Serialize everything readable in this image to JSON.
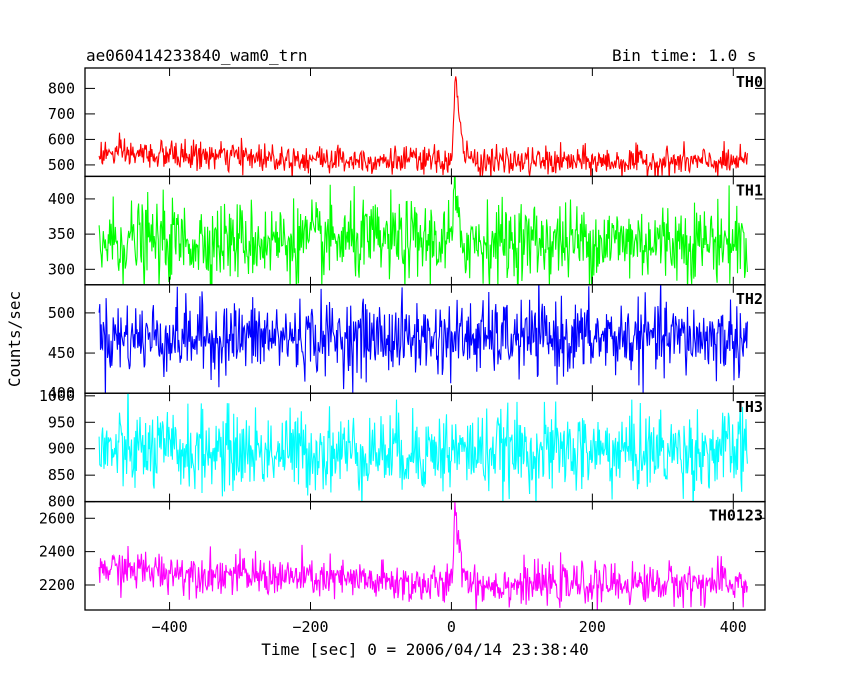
{
  "header": {
    "title": "ae060414233840_wam0_trn",
    "bin_time": "Bin time: 1.0 s"
  },
  "chart_data": {
    "type": "line",
    "xlabel": "Time [sec] 0 = 2006/04/14 23:38:40",
    "ylabel": "Counts/sec",
    "xlim": [
      -520,
      445
    ],
    "x_range": [
      -500,
      420
    ],
    "x_ticks": [
      -400,
      -200,
      0,
      200,
      400
    ],
    "panels": [
      {
        "name": "TH0",
        "color": "#ff0000",
        "ylim": [
          455,
          880
        ],
        "yticks": [
          500,
          600,
          700,
          800
        ],
        "baseline": [
          [
            -500,
            545
          ],
          [
            -200,
            525
          ],
          [
            -20,
            515
          ],
          [
            420,
            510
          ]
        ],
        "noise": 28,
        "burst": {
          "start": 2,
          "peak_time": 6,
          "peak": 875,
          "decay": 6
        }
      },
      {
        "name": "TH1",
        "color": "#00ff00",
        "ylim": [
          278,
          432
        ],
        "yticks": [
          300,
          350,
          400
        ],
        "baseline": [
          [
            -500,
            340
          ],
          [
            420,
            340
          ]
        ],
        "noise": 28,
        "burst": {
          "start": 2,
          "peak_time": 4,
          "peak": 430,
          "decay": 3
        }
      },
      {
        "name": "TH2",
        "color": "#0000ff",
        "ylim": [
          400,
          535
        ],
        "yticks": [
          400,
          450,
          500
        ],
        "baseline": [
          [
            -500,
            470
          ],
          [
            420,
            468
          ]
        ],
        "noise": 23,
        "burst": null
      },
      {
        "name": "TH3",
        "color": "#00ffff",
        "ylim": [
          800,
          1005
        ],
        "yticks": [
          800,
          850,
          900,
          950,
          1000
        ],
        "baseline": [
          [
            -500,
            895
          ],
          [
            420,
            895
          ]
        ],
        "noise": 38,
        "burst": null
      },
      {
        "name": "TH0123",
        "color": "#ff00ff",
        "ylim": [
          2050,
          2700
        ],
        "yticks": [
          2200,
          2400,
          2600
        ],
        "baseline": [
          [
            -500,
            2300
          ],
          [
            -200,
            2240
          ],
          [
            -20,
            2200
          ],
          [
            420,
            2210
          ]
        ],
        "noise": 60,
        "burst": {
          "start": 2,
          "peak_time": 6,
          "peak": 2690,
          "decay": 7
        }
      }
    ]
  }
}
